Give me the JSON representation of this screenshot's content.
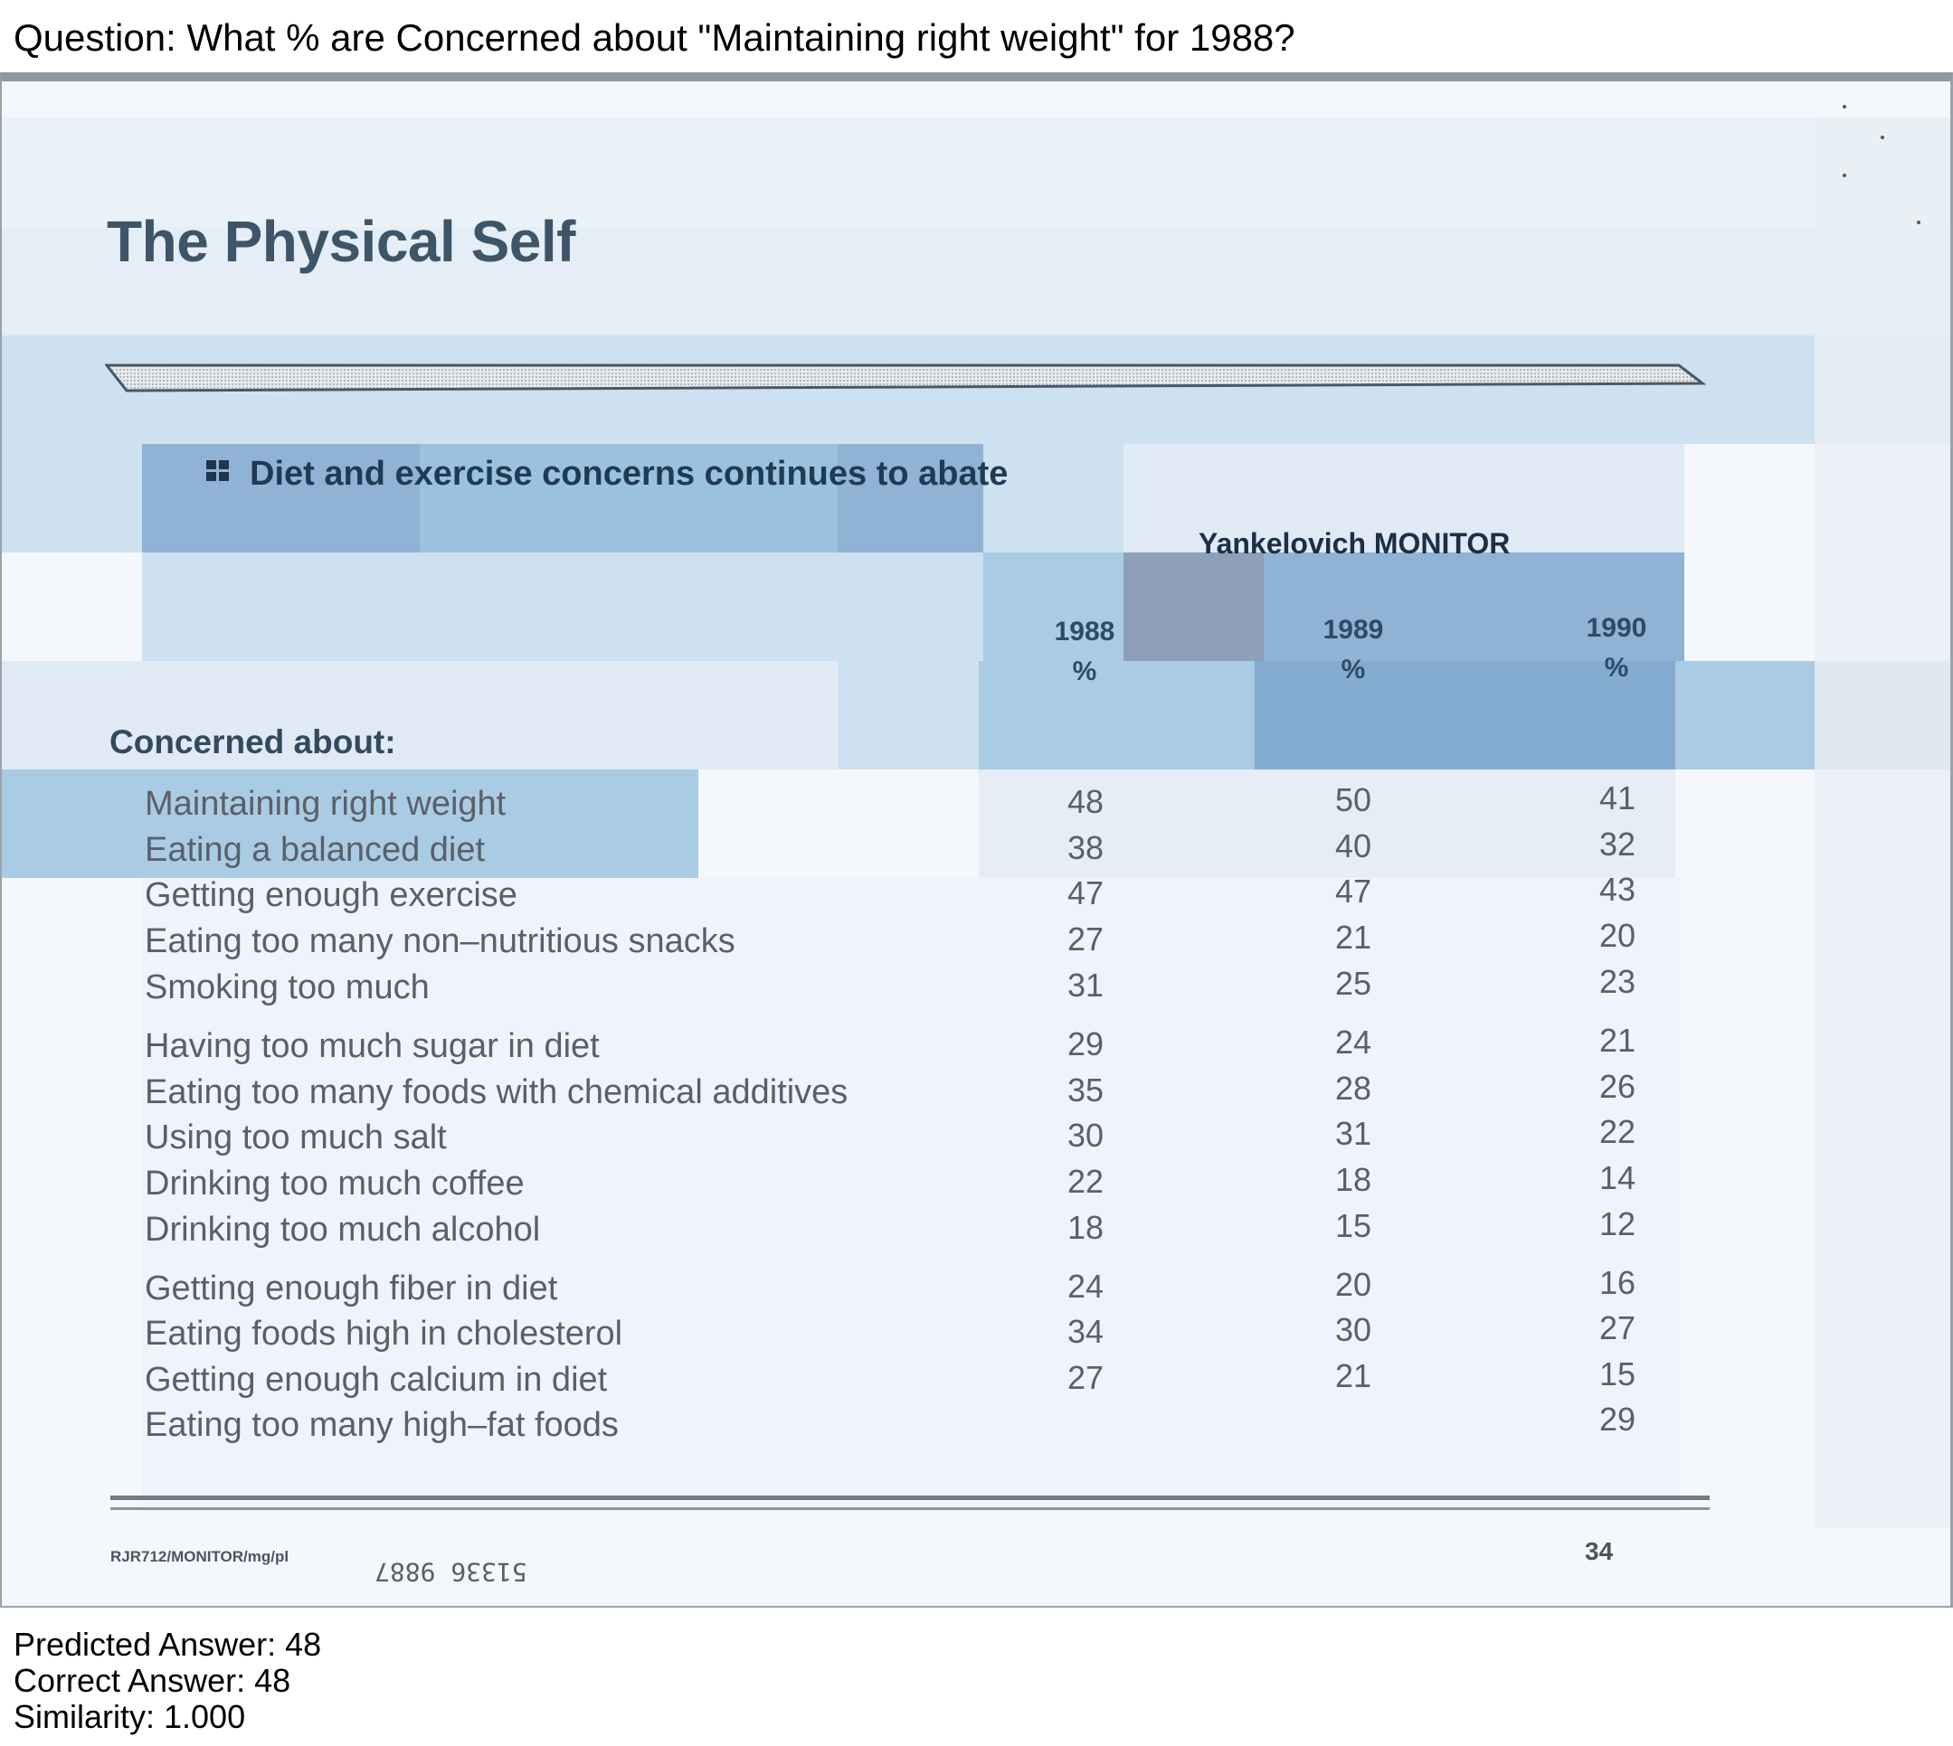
{
  "question": "Question: What % are Concerned about \"Maintaining right weight\" for 1988?",
  "document": {
    "title": "The Physical Self",
    "subtitle": "Diet and exercise concerns continues to abate",
    "source": "Yankelovich MONITOR",
    "columns": [
      {
        "year": "1988",
        "unit": "%"
      },
      {
        "year": "1989",
        "unit": "%"
      },
      {
        "year": "1990",
        "unit": "%"
      }
    ],
    "section_label": "Concerned about:",
    "rows": [
      {
        "label": "Maintaining right weight",
        "v1988": "48",
        "v1989": "50",
        "v1990": "41"
      },
      {
        "label": "Eating a balanced diet",
        "v1988": "38",
        "v1989": "40",
        "v1990": "32"
      },
      {
        "label": "Getting enough exercise",
        "v1988": "47",
        "v1989": "47",
        "v1990": "43"
      },
      {
        "label": "Eating too many non–nutritious snacks",
        "v1988": "27",
        "v1989": "21",
        "v1990": "20"
      },
      {
        "label": "Smoking too much",
        "v1988": "31",
        "v1989": "25",
        "v1990": "23"
      },
      {
        "label": "Having too much sugar in diet",
        "v1988": "29",
        "v1989": "24",
        "v1990": "21"
      },
      {
        "label": "Eating too many foods with chemical additives",
        "v1988": "35",
        "v1989": "28",
        "v1990": "26"
      },
      {
        "label": "Using too much salt",
        "v1988": "30",
        "v1989": "31",
        "v1990": "22"
      },
      {
        "label": "Drinking too much coffee",
        "v1988": "22",
        "v1989": "18",
        "v1990": "14"
      },
      {
        "label": "Drinking too much alcohol",
        "v1988": "18",
        "v1989": "15",
        "v1990": "12"
      },
      {
        "label": "Getting enough fiber in diet",
        "v1988": "24",
        "v1989": "20",
        "v1990": "16"
      },
      {
        "label": "Eating foods high in cholesterol",
        "v1988": "34",
        "v1989": "30",
        "v1990": "27"
      },
      {
        "label": "Getting enough calcium in diet",
        "v1988": "27",
        "v1989": "21",
        "v1990": "15"
      },
      {
        "label": "Eating too many high–fat foods",
        "v1988": "",
        "v1989": "",
        "v1990": "29"
      }
    ],
    "footer_code": "RJR712/MONITOR/mg/pl",
    "stamp": "51336 9887",
    "page_number": "34"
  },
  "result": {
    "predicted": "Predicted Answer: 48",
    "correct": "Correct Answer: 48",
    "similarity": "Similarity: 1.000"
  },
  "colors": {
    "heat_strong": "#7ea6cc",
    "heat_medium": "#9cc3df",
    "heat_light": "#c6dded",
    "heat_faint": "#dce8f2",
    "heat_focus": "#7b8fab"
  }
}
